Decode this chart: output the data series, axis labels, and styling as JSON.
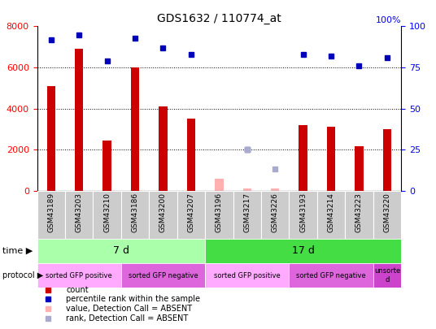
{
  "title": "GDS1632 / 110774_at",
  "samples": [
    "GSM43189",
    "GSM43203",
    "GSM43210",
    "GSM43186",
    "GSM43200",
    "GSM43207",
    "GSM43196",
    "GSM43217",
    "GSM43226",
    "GSM43193",
    "GSM43214",
    "GSM43223",
    "GSM43220"
  ],
  "count_values": [
    5100,
    6900,
    2450,
    6000,
    4100,
    3500,
    null,
    null,
    null,
    3200,
    3100,
    2150,
    3000
  ],
  "percentile_values": [
    92,
    95,
    79,
    93,
    87,
    83,
    null,
    25,
    null,
    83,
    82,
    76,
    81
  ],
  "absent_count_values": [
    null,
    null,
    null,
    null,
    null,
    null,
    600,
    100,
    100,
    null,
    null,
    null,
    null
  ],
  "absent_rank_values": [
    null,
    null,
    null,
    null,
    null,
    null,
    null,
    2000,
    1050,
    null,
    null,
    null,
    null
  ],
  "ylim_left": [
    0,
    8000
  ],
  "ylim_right": [
    0,
    100
  ],
  "yticks_left": [
    0,
    2000,
    4000,
    6000,
    8000
  ],
  "yticks_right": [
    0,
    25,
    50,
    75,
    100
  ],
  "bar_color": "#cc0000",
  "dot_color": "#0000bb",
  "absent_bar_color": "#ffb0b0",
  "absent_dot_color": "#aaaacc",
  "time_7d_color": "#aaffaa",
  "time_17d_color": "#44dd44",
  "protocol_pos_color": "#ffaaff",
  "protocol_neg_color": "#dd66dd",
  "protocol_unsorted_color": "#cc44cc",
  "background_color": "#ffffff"
}
